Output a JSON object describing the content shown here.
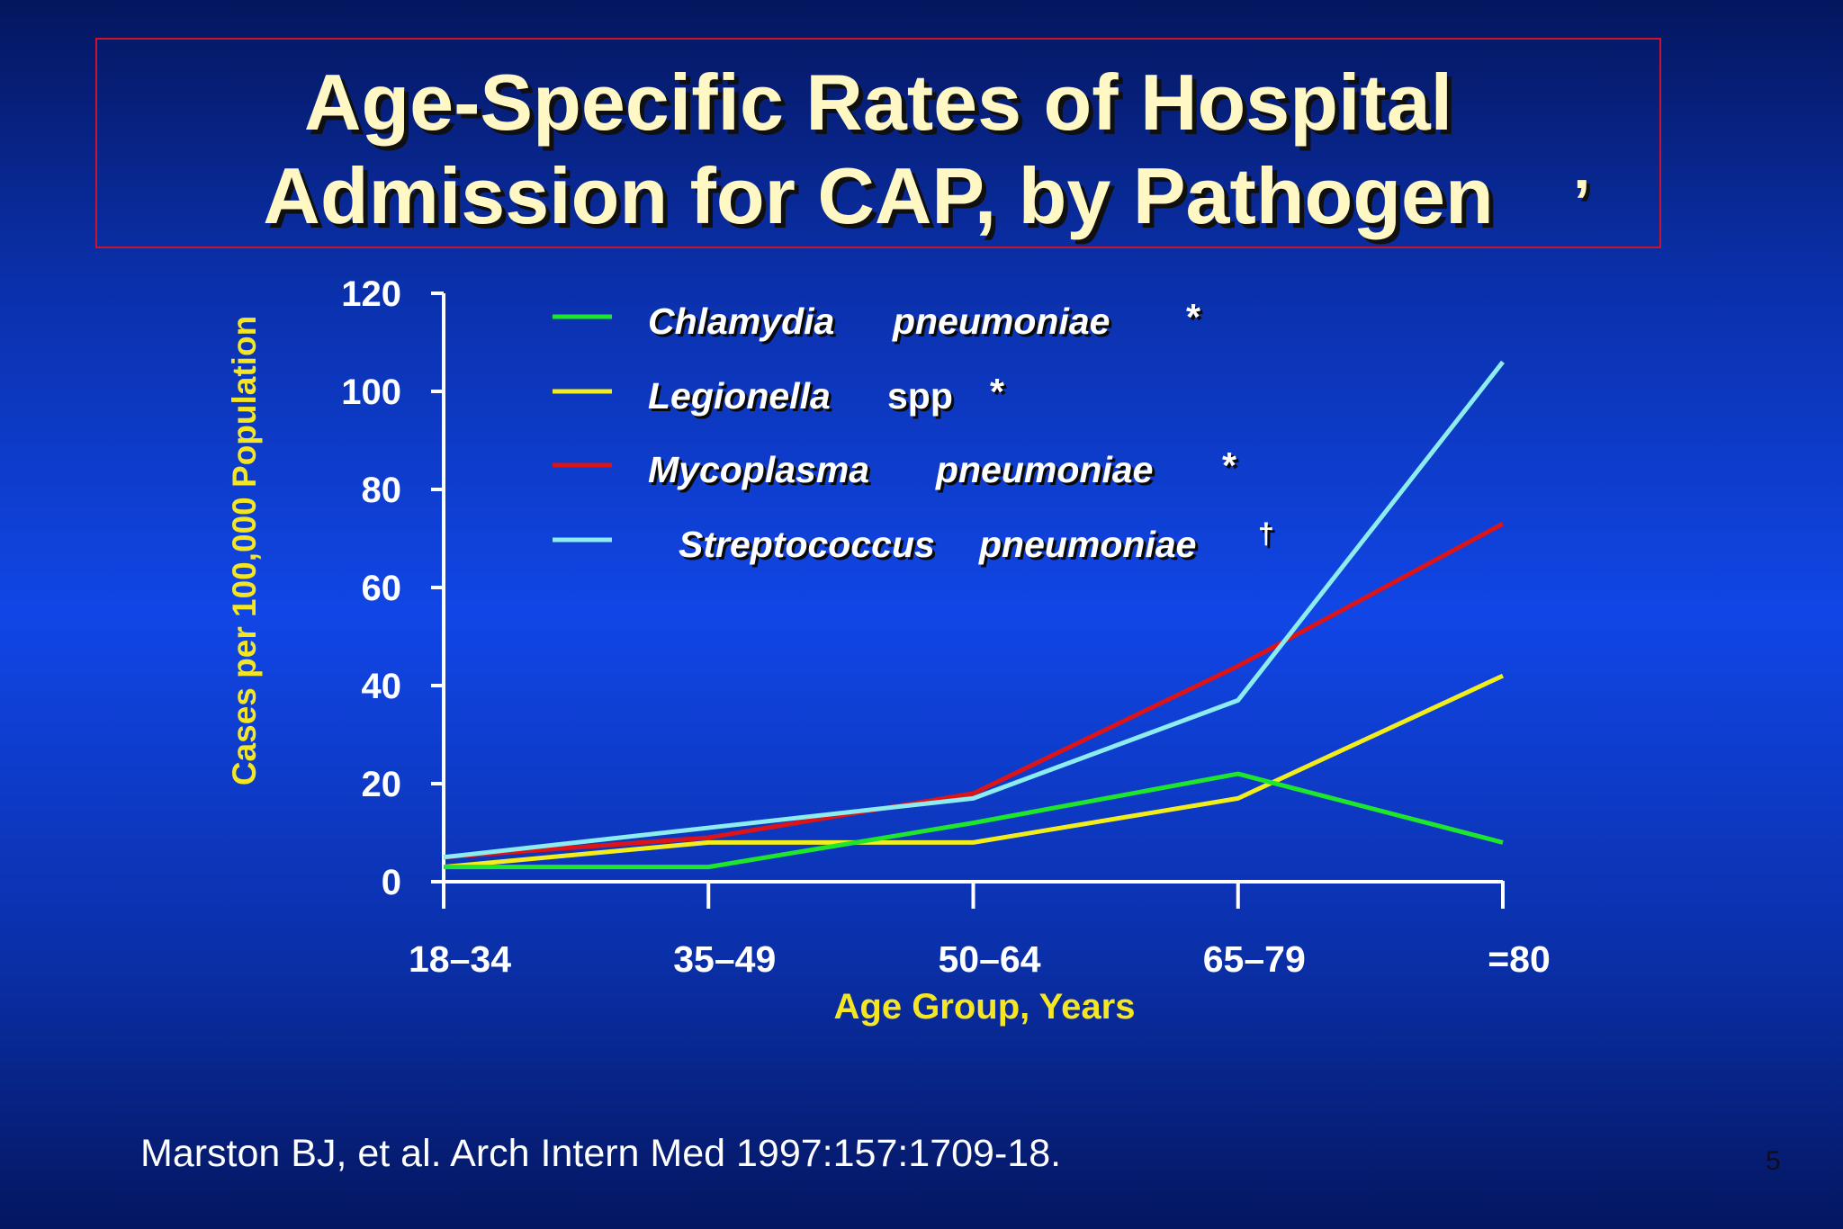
{
  "slide": {
    "title_line1": "Age-Specific Rates of Hospital",
    "title_line2": "Admission for CAP, by Pathogen",
    "title_mark": "’",
    "citation": "Marston BJ, et al. Arch Intern Med 1997:157:1709-18.",
    "page_number": "5"
  },
  "chart_data": {
    "type": "line",
    "xlabel": "Age Group, Years",
    "ylabel": "Cases per 100,000 Population",
    "categories": [
      "18–34",
      "35–49",
      "50–64",
      "65–79",
      "=80"
    ],
    "ylim": [
      0,
      120
    ],
    "yticks": [
      "0",
      "20",
      "40",
      "60",
      "80",
      "100",
      "120"
    ],
    "grid": false,
    "legend_position": "top-center",
    "series": [
      {
        "name": "Chlamydia pneumoniae",
        "name_parts": [
          "Chlamydia",
          "pneumoniae"
        ],
        "mark": "*",
        "color": "#1ee62c",
        "values": [
          3,
          3,
          12,
          22,
          8
        ]
      },
      {
        "name": "Legionella spp",
        "name_parts": [
          "Legionella",
          "spp"
        ],
        "mark": "*",
        "color": "#f2ee1e",
        "values": [
          3,
          8,
          8,
          17,
          42
        ]
      },
      {
        "name": "Mycoplasma pneumoniae",
        "name_parts": [
          "Mycoplasma",
          "pneumoniae"
        ],
        "mark": "*",
        "color": "#dc1418",
        "values": [
          5,
          9,
          18,
          44,
          73
        ]
      },
      {
        "name": "Streptococcus pneumoniae",
        "name_parts": [
          "Streptococcus",
          "pneumoniae"
        ],
        "mark": "†",
        "color": "#8cecf0",
        "values": [
          5,
          11,
          17,
          37,
          106
        ]
      }
    ],
    "colors": {
      "axis": "#ffffff",
      "tick_label": "#ffffff",
      "axis_title": "#f5e624",
      "legend_text": "#ffffff"
    }
  }
}
